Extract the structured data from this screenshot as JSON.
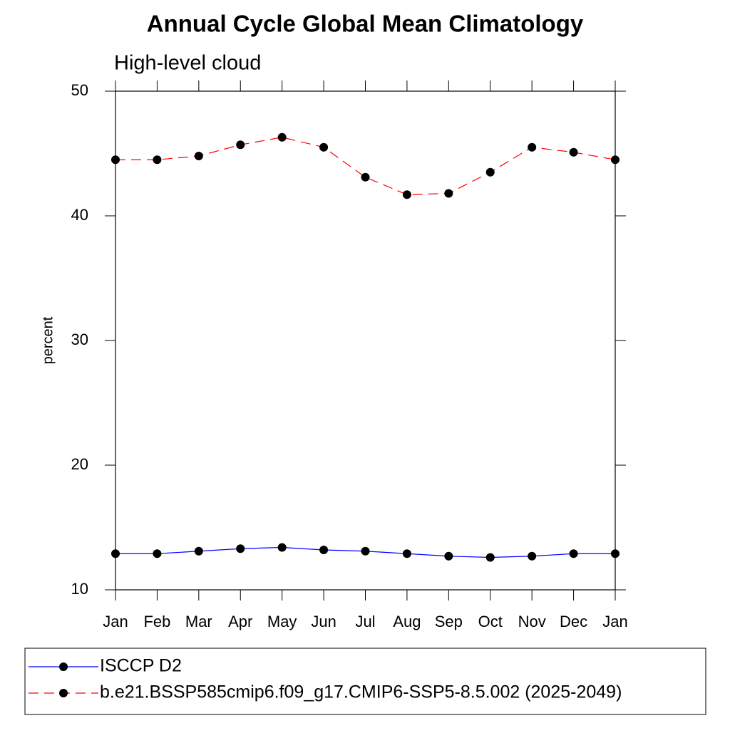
{
  "chart_data": {
    "type": "line",
    "title": "Annual Cycle Global Mean Climatology",
    "subtitle": "High-level cloud",
    "y_label": "percent",
    "categories": [
      "Jan",
      "Feb",
      "Mar",
      "Apr",
      "May",
      "Jun",
      "Jul",
      "Aug",
      "Sep",
      "Oct",
      "Nov",
      "Dec",
      "Jan"
    ],
    "series": [
      {
        "name": "ISCCP D2",
        "color": "#0000ff",
        "dash": false,
        "values": [
          12.9,
          12.9,
          13.1,
          13.3,
          13.4,
          13.2,
          13.1,
          12.9,
          12.7,
          12.6,
          12.7,
          12.9,
          12.9
        ]
      },
      {
        "name": "b.e21.BSSP585cmip6.f09_g17.CMIP6-SSP5-8.5.002 (2025-2049)",
        "color": "#ff0000",
        "dash": true,
        "values": [
          44.5,
          44.5,
          44.8,
          45.7,
          46.3,
          45.5,
          43.1,
          41.7,
          41.8,
          43.5,
          45.5,
          45.1,
          44.5
        ]
      }
    ],
    "ylim": [
      10,
      50
    ],
    "yticks": [
      10,
      20,
      30,
      40,
      50
    ]
  }
}
